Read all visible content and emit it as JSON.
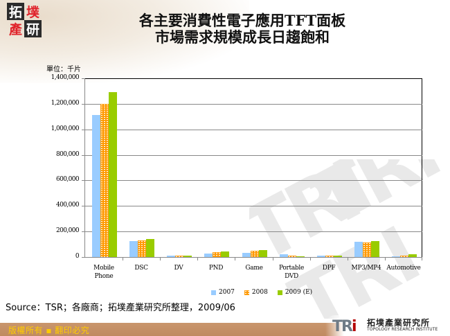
{
  "header": {
    "logo_chars": [
      "拓",
      "墣",
      "產",
      "研"
    ],
    "title_line1": "各主要消費性電子應用TFT面板",
    "title_line2": "市場需求規模成長日趨飽和"
  },
  "unit_label": "單位：千片",
  "source": "Source：TSR；各廠商；拓墣產業研究所整理，2009/06",
  "footer": {
    "copyright": "版權所有 ▪ 翻印必究",
    "brand_mark": "TRi",
    "brand_cn": "拓墣產業研究所",
    "brand_en": "TOPOLOGY RESEARCH INSTITUTE"
  },
  "colors": {
    "s2007": "#99CCFF",
    "s2008": "#FF9900",
    "s2009": "#99CC00",
    "footer_bg": "#C48E64",
    "footer_text": "#FFCC00"
  },
  "y_ticks": [
    "1,400,000",
    "1,200,000",
    "1,000,000",
    "800,000",
    "600,000",
    "400,000",
    "200,000",
    "0"
  ],
  "x_labels": [
    [
      "Mobile",
      "Phone"
    ],
    [
      "DSC",
      ""
    ],
    [
      "DV",
      ""
    ],
    [
      "PND",
      ""
    ],
    [
      "Game",
      ""
    ],
    [
      "Portable",
      "DVD"
    ],
    [
      "DPF",
      ""
    ],
    [
      "MP3/MP4",
      ""
    ],
    [
      "Automotive",
      ""
    ]
  ],
  "legend": [
    "2007",
    "2008",
    "2009 (E)"
  ],
  "chart_data": {
    "type": "bar",
    "title": "各主要消費性電子應用TFT面板市場需求規模成長日趨飽和",
    "xlabel": "",
    "ylabel": "單位：千片",
    "categories": [
      "Mobile Phone",
      "DSC",
      "DV",
      "PND",
      "Game",
      "Portable DVD",
      "DPF",
      "MP3/MP4",
      "Automotive"
    ],
    "series": [
      {
        "name": "2007",
        "values": [
          1110000,
          125000,
          12000,
          28000,
          35000,
          22000,
          10000,
          118000,
          5000
        ]
      },
      {
        "name": "2008",
        "values": [
          1200000,
          128000,
          12000,
          37000,
          47000,
          12000,
          11000,
          113000,
          12000
        ]
      },
      {
        "name": "2009 (E)",
        "values": [
          1290000,
          143000,
          12000,
          46000,
          57000,
          6000,
          12000,
          125000,
          22000
        ]
      }
    ],
    "ylim": [
      0,
      1400000
    ],
    "y_ticks": [
      0,
      200000,
      400000,
      600000,
      800000,
      1000000,
      1200000,
      1400000
    ],
    "grid": true,
    "legend_position": "bottom"
  }
}
